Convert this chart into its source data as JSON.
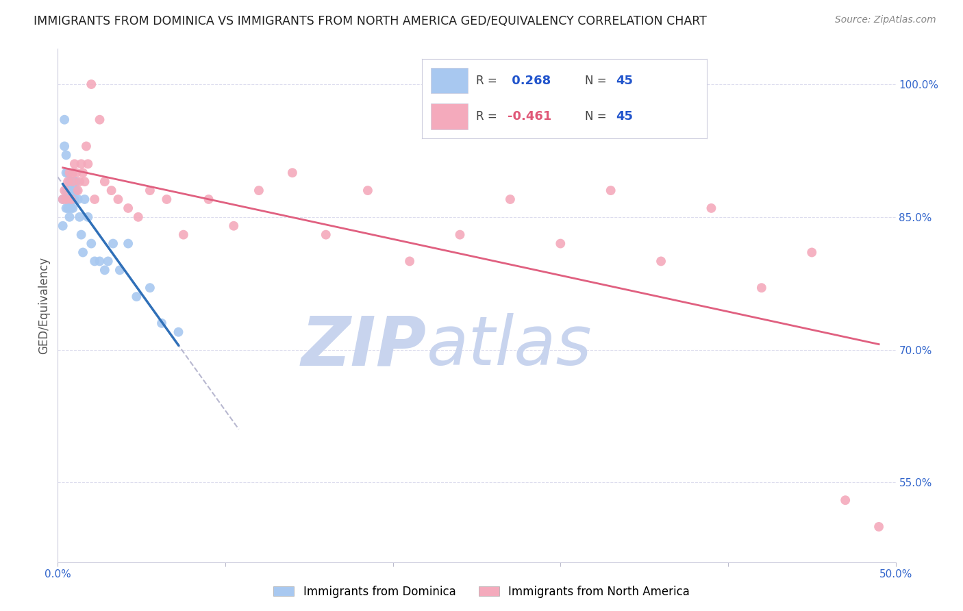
{
  "title": "IMMIGRANTS FROM DOMINICA VS IMMIGRANTS FROM NORTH AMERICA GED/EQUIVALENCY CORRELATION CHART",
  "source": "Source: ZipAtlas.com",
  "ylabel": "GED/Equivalency",
  "xlim": [
    0.0,
    0.5
  ],
  "ylim": [
    0.46,
    1.04
  ],
  "ytick_labels_right": [
    "100.0%",
    "85.0%",
    "70.0%",
    "55.0%"
  ],
  "yticks_right": [
    1.0,
    0.85,
    0.7,
    0.55
  ],
  "R_blue": 0.268,
  "N_blue": 45,
  "R_pink": -0.461,
  "N_pink": 45,
  "blue_color": "#A8C8F0",
  "pink_color": "#F4AABC",
  "blue_line_color": "#3070B8",
  "pink_line_color": "#E06080",
  "dash_line_color": "#B8B8D0",
  "watermark_zip": "ZIP",
  "watermark_atlas": "atlas",
  "watermark_color": "#C8D4EE",
  "background_color": "#FFFFFF",
  "grid_color": "#DDDDEE",
  "blue_points_x": [
    0.003,
    0.003,
    0.004,
    0.004,
    0.005,
    0.005,
    0.005,
    0.005,
    0.006,
    0.006,
    0.006,
    0.006,
    0.007,
    0.007,
    0.007,
    0.008,
    0.008,
    0.008,
    0.008,
    0.009,
    0.009,
    0.009,
    0.01,
    0.01,
    0.01,
    0.011,
    0.011,
    0.012,
    0.013,
    0.014,
    0.015,
    0.016,
    0.018,
    0.02,
    0.022,
    0.025,
    0.028,
    0.03,
    0.033,
    0.037,
    0.042,
    0.047,
    0.055,
    0.062,
    0.072
  ],
  "blue_points_y": [
    0.84,
    0.87,
    0.93,
    0.96,
    0.86,
    0.88,
    0.9,
    0.92,
    0.86,
    0.87,
    0.88,
    0.9,
    0.85,
    0.87,
    0.89,
    0.86,
    0.87,
    0.88,
    0.89,
    0.86,
    0.87,
    0.88,
    0.87,
    0.88,
    0.89,
    0.88,
    0.89,
    0.87,
    0.85,
    0.83,
    0.81,
    0.87,
    0.85,
    0.82,
    0.8,
    0.8,
    0.79,
    0.8,
    0.82,
    0.79,
    0.82,
    0.76,
    0.77,
    0.73,
    0.72
  ],
  "pink_points_x": [
    0.003,
    0.004,
    0.005,
    0.006,
    0.007,
    0.008,
    0.009,
    0.009,
    0.01,
    0.011,
    0.012,
    0.013,
    0.014,
    0.015,
    0.016,
    0.017,
    0.018,
    0.02,
    0.022,
    0.025,
    0.028,
    0.032,
    0.036,
    0.042,
    0.048,
    0.055,
    0.065,
    0.075,
    0.09,
    0.105,
    0.12,
    0.14,
    0.16,
    0.185,
    0.21,
    0.24,
    0.27,
    0.3,
    0.33,
    0.36,
    0.39,
    0.42,
    0.45,
    0.47,
    0.49
  ],
  "pink_points_y": [
    0.87,
    0.88,
    0.87,
    0.89,
    0.9,
    0.87,
    0.89,
    0.9,
    0.91,
    0.9,
    0.88,
    0.89,
    0.91,
    0.9,
    0.89,
    0.93,
    0.91,
    1.0,
    0.87,
    0.96,
    0.89,
    0.88,
    0.87,
    0.86,
    0.85,
    0.88,
    0.87,
    0.83,
    0.87,
    0.84,
    0.88,
    0.9,
    0.83,
    0.88,
    0.8,
    0.83,
    0.87,
    0.82,
    0.88,
    0.8,
    0.86,
    0.77,
    0.81,
    0.53,
    0.5
  ]
}
